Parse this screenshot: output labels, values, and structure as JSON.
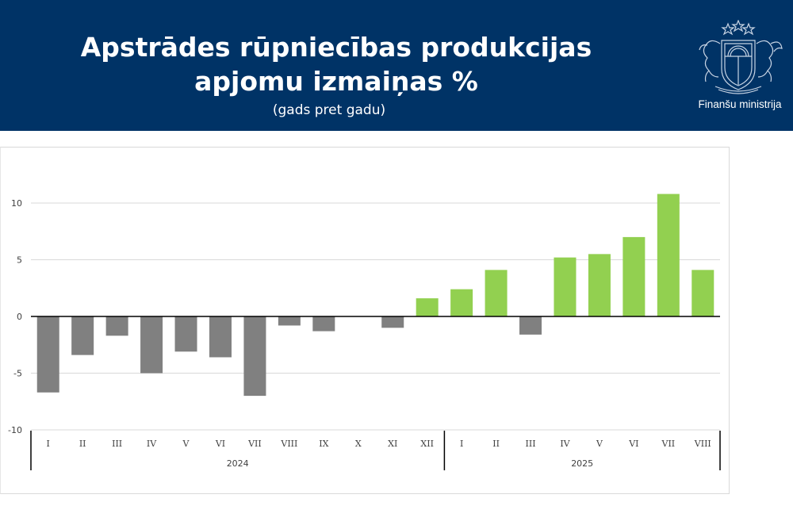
{
  "header": {
    "title_line1": "Apstrādes rūpniecības produkcijas",
    "title_line2": "apjomu izmaiņas %",
    "subtitle": "(gads pret gadu)",
    "logo_icon": "latvia-coat-of-arms-icon",
    "ministry": "Finanšu ministrija",
    "background_color": "#003366"
  },
  "chart_data": {
    "type": "bar",
    "title": "Apstrādes rūpniecības produkcijas apjomu izmaiņas %",
    "subtitle": "(gads pret gadu)",
    "xlabel": "",
    "ylabel": "",
    "ylim": [
      -10,
      10
    ],
    "yticks": [
      10,
      5,
      0,
      -5,
      -10
    ],
    "grid": true,
    "legend": "none",
    "groups": [
      {
        "label": "2024",
        "categories": [
          "I",
          "II",
          "III",
          "IV",
          "V",
          "VI",
          "VII",
          "VIII",
          "IX",
          "X",
          "XI",
          "XII"
        ],
        "values": [
          -6.7,
          -3.4,
          -1.7,
          -5.0,
          -3.1,
          -3.6,
          -7.0,
          -0.8,
          -1.3,
          0.0,
          -1.0,
          1.6
        ]
      },
      {
        "label": "2025",
        "categories": [
          "I",
          "II",
          "III",
          "IV",
          "V",
          "VI",
          "VII",
          "VIII"
        ],
        "values": [
          2.4,
          4.1,
          -1.6,
          5.2,
          5.5,
          7.0,
          10.8,
          4.1
        ]
      }
    ],
    "colors": {
      "negative": "#808080",
      "positive": "#92d050",
      "grid": "#d9d9d9",
      "zero_line": "#000000"
    }
  }
}
